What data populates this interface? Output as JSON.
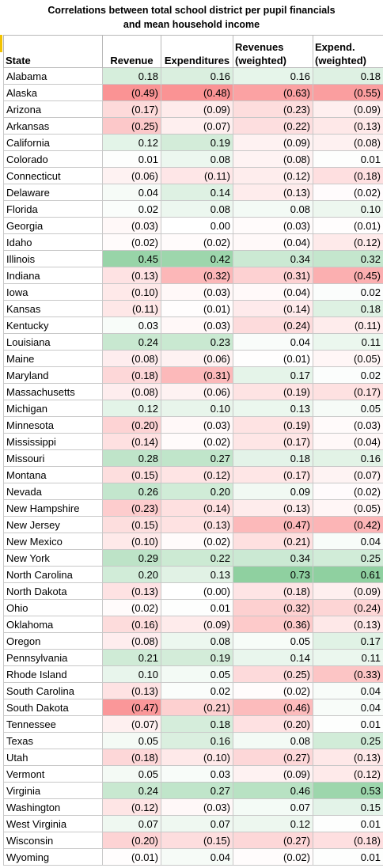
{
  "title": {
    "line1": "Correlations between total school district per pupil financials",
    "line2": "and mean household income"
  },
  "headers": [
    "State",
    "Revenue",
    "Expenditures",
    "Revenues (weighted)",
    "Expend. (weighted)"
  ],
  "rows": [
    [
      "Alabama",
      "0.18",
      "0.16",
      "0.16",
      "0.18"
    ],
    [
      "Alaska",
      "(0.49)",
      "(0.48)",
      "(0.63)",
      "(0.55)"
    ],
    [
      "Arizona",
      "(0.17)",
      "(0.09)",
      "(0.23)",
      "(0.09)"
    ],
    [
      "Arkansas",
      "(0.25)",
      "(0.07)",
      "(0.22)",
      "(0.13)"
    ],
    [
      "California",
      "0.12",
      "0.19",
      "(0.09)",
      "(0.08)"
    ],
    [
      "Colorado",
      "0.01",
      "0.08",
      "(0.08)",
      "0.01"
    ],
    [
      "Connecticut",
      "(0.06)",
      "(0.11)",
      "(0.12)",
      "(0.18)"
    ],
    [
      "Delaware",
      "0.04",
      "0.14",
      "(0.13)",
      "(0.02)"
    ],
    [
      "Florida",
      "0.02",
      "0.08",
      "0.08",
      "0.10"
    ],
    [
      "Georgia",
      "(0.03)",
      "0.00",
      "(0.03)",
      "(0.01)"
    ],
    [
      "Idaho",
      "(0.02)",
      "(0.02)",
      "(0.04)",
      "(0.12)"
    ],
    [
      "Illinois",
      "0.45",
      "0.42",
      "0.34",
      "0.32"
    ],
    [
      "Indiana",
      "(0.13)",
      "(0.32)",
      "(0.31)",
      "(0.45)"
    ],
    [
      "Iowa",
      "(0.10)",
      "(0.03)",
      "(0.04)",
      "0.02"
    ],
    [
      "Kansas",
      "(0.11)",
      "(0.01)",
      "(0.14)",
      "0.18"
    ],
    [
      "Kentucky",
      "0.03",
      "(0.03)",
      "(0.24)",
      "(0.11)"
    ],
    [
      "Louisiana",
      "0.24",
      "0.23",
      "0.04",
      "0.11"
    ],
    [
      "Maine",
      "(0.08)",
      "(0.06)",
      "(0.01)",
      "(0.05)"
    ],
    [
      "Maryland",
      "(0.18)",
      "(0.31)",
      "0.17",
      "0.02"
    ],
    [
      "Massachusetts",
      "(0.08)",
      "(0.06)",
      "(0.19)",
      "(0.17)"
    ],
    [
      "Michigan",
      "0.12",
      "0.10",
      "0.13",
      "0.05"
    ],
    [
      "Minnesota",
      "(0.20)",
      "(0.03)",
      "(0.19)",
      "(0.03)"
    ],
    [
      "Mississippi",
      "(0.14)",
      "(0.02)",
      "(0.17)",
      "(0.04)"
    ],
    [
      "Missouri",
      "0.28",
      "0.27",
      "0.18",
      "0.16"
    ],
    [
      "Montana",
      "(0.15)",
      "(0.12)",
      "(0.17)",
      "(0.07)"
    ],
    [
      "Nevada",
      "0.26",
      "0.20",
      "0.09",
      "(0.02)"
    ],
    [
      "New Hampshire",
      "(0.23)",
      "(0.14)",
      "(0.13)",
      "(0.05)"
    ],
    [
      "New Jersey",
      "(0.15)",
      "(0.13)",
      "(0.47)",
      "(0.42)"
    ],
    [
      "New Mexico",
      "(0.10)",
      "(0.02)",
      "(0.21)",
      "0.04"
    ],
    [
      "New York",
      "0.29",
      "0.22",
      "0.34",
      "0.25"
    ],
    [
      "North Carolina",
      "0.20",
      "0.13",
      "0.73",
      "0.61"
    ],
    [
      "North Dakota",
      "(0.13)",
      "(0.00)",
      "(0.18)",
      "(0.09)"
    ],
    [
      "Ohio",
      "(0.02)",
      "0.01",
      "(0.32)",
      "(0.24)"
    ],
    [
      "Oklahoma",
      "(0.16)",
      "(0.09)",
      "(0.36)",
      "(0.13)"
    ],
    [
      "Oregon",
      "(0.08)",
      "0.08",
      "0.05",
      "0.17"
    ],
    [
      "Pennsylvania",
      "0.21",
      "0.19",
      "0.14",
      "0.11"
    ],
    [
      "Rhode Island",
      "0.10",
      "0.05",
      "(0.25)",
      "(0.33)"
    ],
    [
      "South Carolina",
      "(0.13)",
      "0.02",
      "(0.02)",
      "0.04"
    ],
    [
      "South Dakota",
      "(0.47)",
      "(0.21)",
      "(0.46)",
      "0.04"
    ],
    [
      "Tennessee",
      "(0.07)",
      "0.18",
      "(0.20)",
      "0.01"
    ],
    [
      "Texas",
      "0.05",
      "0.16",
      "0.08",
      "0.25"
    ],
    [
      "Utah",
      "(0.18)",
      "(0.10)",
      "(0.27)",
      "(0.13)"
    ],
    [
      "Vermont",
      "0.05",
      "0.03",
      "(0.09)",
      "(0.12)"
    ],
    [
      "Virginia",
      "0.24",
      "0.27",
      "0.46",
      "0.53"
    ],
    [
      "Washington",
      "(0.12)",
      "(0.03)",
      "0.07",
      "0.15"
    ],
    [
      "West Virginia",
      "0.07",
      "0.07",
      "0.12",
      "0.01"
    ],
    [
      "Wisconsin",
      "(0.20)",
      "(0.15)",
      "(0.27)",
      "(0.18)"
    ],
    [
      "Wyoming",
      "(0.01)",
      "0.04",
      "(0.02)",
      "0.01"
    ]
  ],
  "colors": {
    "positive": "#63be7b",
    "negative": "#f8696b",
    "neutral": "#ffffff"
  }
}
